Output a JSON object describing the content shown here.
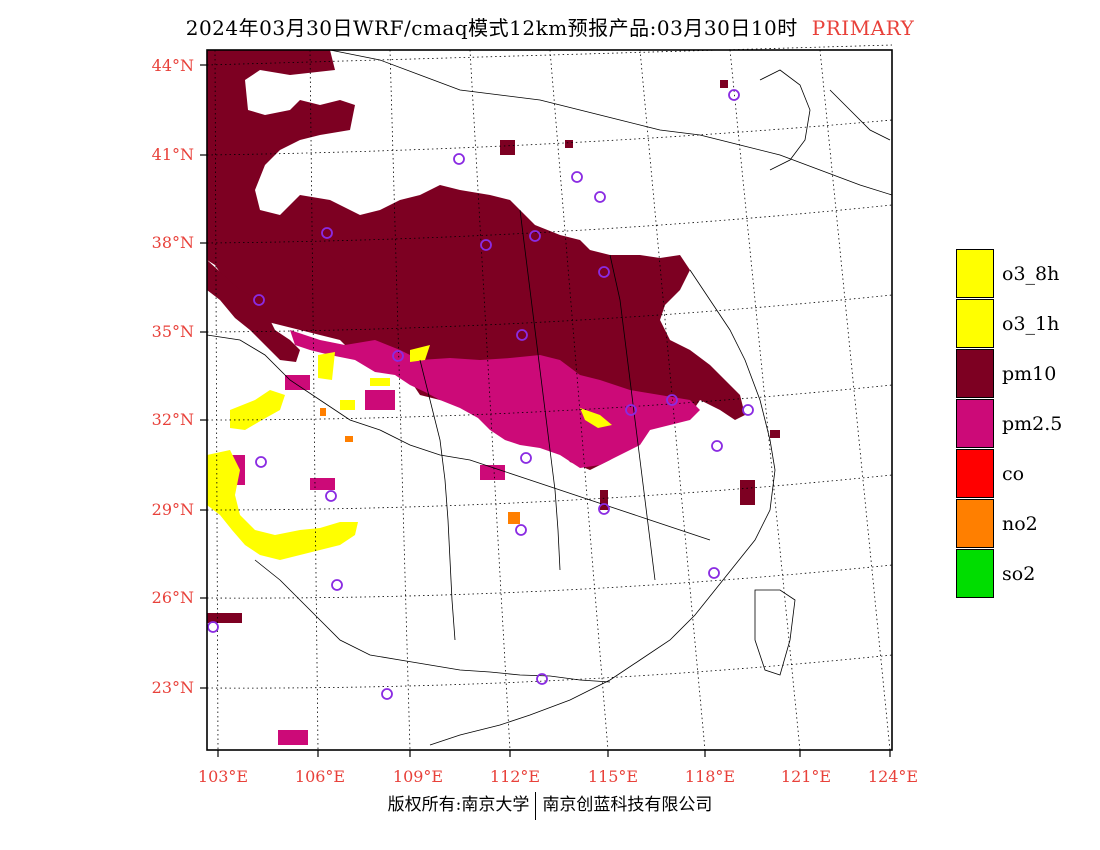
{
  "title": {
    "main": "2024年03月30日WRF/cmaq模式12km预报产品:03月30日10时",
    "tag": "PRIMARY"
  },
  "axes": {
    "lat_labels": [
      "44°N",
      "41°N",
      "38°N",
      "35°N",
      "32°N",
      "29°N",
      "26°N",
      "23°N"
    ],
    "lon_labels": [
      "103°E",
      "106°E",
      "109°E",
      "112°E",
      "115°E",
      "118°E",
      "121°E",
      "124°E"
    ],
    "lat_range": [
      21,
      44.5
    ],
    "lon_range": [
      102.8,
      124
    ]
  },
  "legend": {
    "items": [
      {
        "label": "o3_8h",
        "color": "#ffff00"
      },
      {
        "label": "o3_1h",
        "color": "#ffff00"
      },
      {
        "label": "pm10",
        "color": "#7d0022"
      },
      {
        "label": "pm2.5",
        "color": "#cc0a78"
      },
      {
        "label": "co",
        "color": "#ff0000"
      },
      {
        "label": "no2",
        "color": "#ff7f00"
      },
      {
        "label": "so2",
        "color": "#00dd00"
      }
    ]
  },
  "footer": {
    "left": "版权所有:南京大学",
    "right": "南京创蓝科技有限公司"
  },
  "colors": {
    "axis_label": "#e8413a",
    "station_marker": "#8a2be2"
  }
}
